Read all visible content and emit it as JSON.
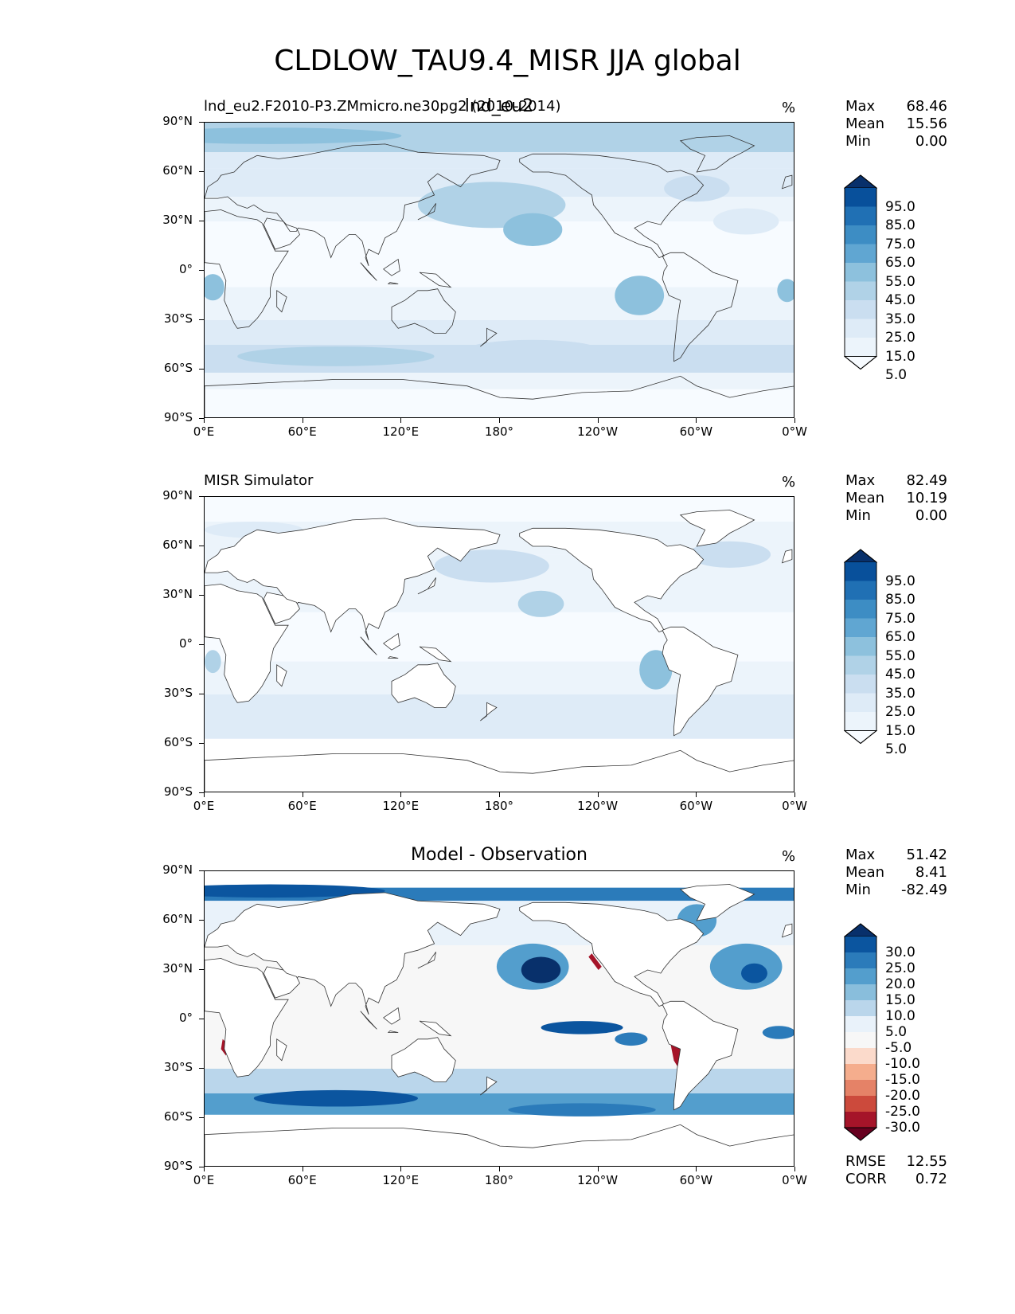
{
  "figure": {
    "title": "CLDLOW_TAU9.4_MISR JJA global",
    "xticks": [
      "0°E",
      "60°E",
      "120°E",
      "180°",
      "120°W",
      "60°W",
      "0°W"
    ],
    "yticks": [
      "90°N",
      "60°N",
      "30°N",
      "0°",
      "30°S",
      "60°S",
      "90°S"
    ]
  },
  "panels": [
    {
      "left_title": "lnd_eu2.F2010-P3.ZMmicro.ne30pg2 (2010-2014)",
      "center_title": "lnd_eu2",
      "units": "%",
      "stats": [
        [
          "Max",
          "68.46"
        ],
        [
          "Mean",
          "15.56"
        ],
        [
          "Min",
          "0.00"
        ]
      ],
      "colorbar": {
        "labels": [
          "95.0",
          "85.0",
          "75.0",
          "65.0",
          "55.0",
          "45.0",
          "35.0",
          "25.0",
          "15.0",
          "5.0"
        ],
        "colors": [
          "#08306b",
          "#08509b",
          "#2070b4",
          "#3d8dc4",
          "#60a6d2",
          "#8dc1dd",
          "#b0d2e7",
          "#cadef0",
          "#deebf7",
          "#ecf4fb",
          "#f7fbff"
        ]
      }
    },
    {
      "left_title": "MISR Simulator",
      "center_title": "",
      "units": "%",
      "stats": [
        [
          "Max",
          "82.49"
        ],
        [
          "Mean",
          "10.19"
        ],
        [
          "Min",
          "0.00"
        ]
      ],
      "colorbar": {
        "labels": [
          "95.0",
          "85.0",
          "75.0",
          "65.0",
          "55.0",
          "45.0",
          "35.0",
          "25.0",
          "15.0",
          "5.0"
        ],
        "colors": [
          "#08306b",
          "#08509b",
          "#2070b4",
          "#3d8dc4",
          "#60a6d2",
          "#8dc1dd",
          "#b0d2e7",
          "#cadef0",
          "#deebf7",
          "#ecf4fb",
          "#f7fbff"
        ]
      }
    },
    {
      "left_title": "",
      "center_title": "Model - Observation",
      "units": "%",
      "stats": [
        [
          "Max",
          "51.42"
        ],
        [
          "Mean",
          "8.41"
        ],
        [
          "Min",
          "-82.49"
        ]
      ],
      "extra_stats": [
        [
          "RMSE",
          "12.55"
        ],
        [
          "CORR",
          "0.72"
        ]
      ],
      "colorbar": {
        "labels": [
          "30.0",
          "25.0",
          "20.0",
          "15.0",
          "10.0",
          "5.0",
          "-5.0",
          "-10.0",
          "-15.0",
          "-20.0",
          "-25.0",
          "-30.0"
        ],
        "colors": [
          "#08306b",
          "#0b559f",
          "#2b7bba",
          "#539ecd",
          "#89bedc",
          "#bad6eb",
          "#e9f2fa",
          "#f7f7f7",
          "#fbdacb",
          "#f5ad8d",
          "#e58267",
          "#cc4a3c",
          "#a51429",
          "#67001f"
        ]
      }
    }
  ]
}
